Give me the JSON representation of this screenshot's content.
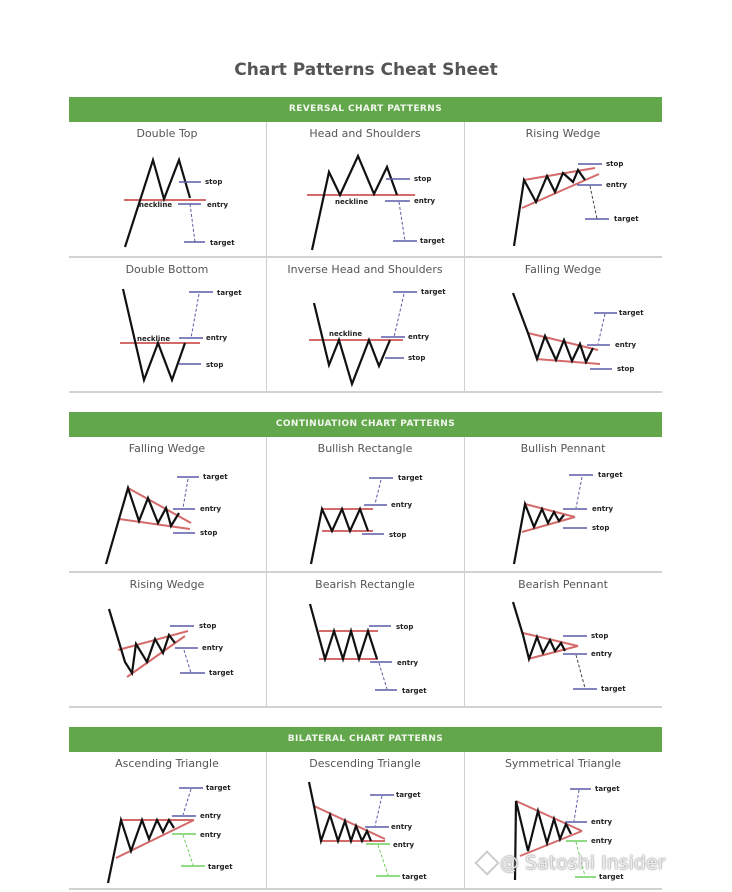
{
  "title": "Chart Patterns Cheat Sheet",
  "colors": {
    "section_bar": "#63a74c",
    "price_line": "#111111",
    "trend_line": "#d46a6a",
    "bull_marker": "#5a5aa8",
    "bear_marker": "#6ccf5a"
  },
  "sections": [
    {
      "label": "REVERSAL CHART PATTERNS",
      "patterns": [
        {
          "name": "Double Top",
          "labels": {
            "stop": "stop",
            "neckline": "neckline",
            "entry": "entry",
            "target": "target"
          }
        },
        {
          "name": "Head and Shoulders",
          "labels": {
            "stop": "stop",
            "neckline": "neckline",
            "entry": "entry",
            "target": "target"
          }
        },
        {
          "name": "Rising Wedge",
          "labels": {
            "stop": "stop",
            "entry": "entry",
            "target": "target"
          }
        },
        {
          "name": "Double Bottom",
          "labels": {
            "target": "target",
            "neckline": "neckline",
            "entry": "entry",
            "stop": "stop"
          }
        },
        {
          "name": "Inverse Head and Shoulders",
          "labels": {
            "target": "target",
            "neckline": "neckline",
            "entry": "entry",
            "stop": "stop"
          }
        },
        {
          "name": "Falling Wedge",
          "labels": {
            "target": "target",
            "entry": "entry",
            "stop": "stop"
          }
        }
      ]
    },
    {
      "label": "CONTINUATION CHART PATTERNS",
      "patterns": [
        {
          "name": "Falling Wedge",
          "labels": {
            "target": "target",
            "entry": "entry",
            "stop": "stop"
          }
        },
        {
          "name": "Bullish Rectangle",
          "labels": {
            "target": "target",
            "entry": "entry",
            "stop": "stop"
          }
        },
        {
          "name": "Bullish Pennant",
          "labels": {
            "target": "target",
            "entry": "entry",
            "stop": "stop"
          }
        },
        {
          "name": "Rising Wedge",
          "labels": {
            "stop": "stop",
            "entry": "entry",
            "target": "target"
          }
        },
        {
          "name": "Bearish Rectangle",
          "labels": {
            "stop": "stop",
            "entry": "entry",
            "target": "target"
          }
        },
        {
          "name": "Bearish Pennant",
          "labels": {
            "stop": "stop",
            "entry": "entry",
            "target": "target"
          }
        }
      ]
    },
    {
      "label": "BILATERAL CHART PATTERNS",
      "patterns": [
        {
          "name": "Ascending Triangle",
          "labels": {
            "target": "target",
            "entry": "entry",
            "entry2": "entry",
            "target2": "target"
          }
        },
        {
          "name": "Descending Triangle",
          "labels": {
            "target": "target",
            "entry": "entry",
            "entry2": "entry",
            "target2": "target"
          }
        },
        {
          "name": "Symmetrical Triangle",
          "labels": {
            "target": "target",
            "entry": "entry",
            "entry2": "entry",
            "target2": "target"
          }
        }
      ]
    }
  ],
  "watermark": "@ Satoshi Insider"
}
